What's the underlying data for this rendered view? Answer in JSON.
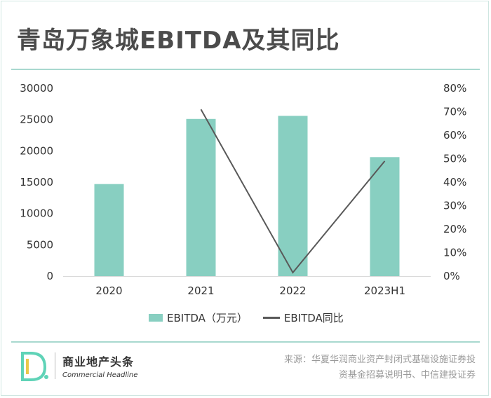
{
  "title": "青岛万象城EBITDA及其同比",
  "colors": {
    "bar": "#88cfc1",
    "line": "#595959",
    "accent": "#a8d8cf"
  },
  "legend": {
    "bar_label": "EBITDA（万元）",
    "line_label": "EBITDA同比"
  },
  "chart_data": {
    "type": "bar",
    "categories": [
      "2020",
      "2021",
      "2022",
      "2023H1"
    ],
    "series": [
      {
        "name": "EBITDA（万元）",
        "type": "bar",
        "axis": "left",
        "values": [
          14700,
          25100,
          25600,
          19000
        ]
      },
      {
        "name": "EBITDA同比",
        "type": "line",
        "axis": "right",
        "values": [
          null,
          71,
          1.5,
          49
        ]
      }
    ],
    "left_ticks": [
      "0",
      "5000",
      "10000",
      "15000",
      "20000",
      "25000",
      "30000"
    ],
    "right_ticks": [
      "0%",
      "10%",
      "20%",
      "30%",
      "40%",
      "50%",
      "60%",
      "70%",
      "80%"
    ],
    "ylim_left": [
      0,
      30000
    ],
    "ylim_right": [
      0,
      80
    ]
  },
  "brand": {
    "mark": "D.",
    "name_cn": "商业地产头条",
    "name_en": "Commercial Headline"
  },
  "source": {
    "line1": "来源：华夏华润商业资产封闭式基础设施证券投",
    "line2": "资基金招募说明书、中信建投证券"
  }
}
